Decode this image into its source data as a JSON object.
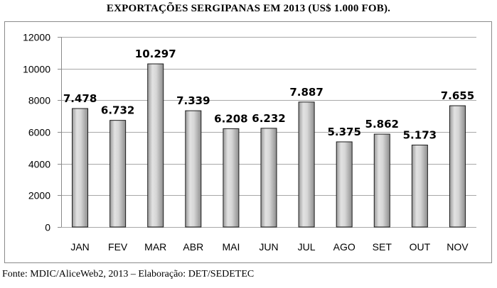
{
  "chart_data": {
    "type": "bar",
    "title": "EXPORTAÇÕES SERGIPANAS EM 2013 (US$ 1.000 FOB).",
    "categories": [
      "JAN",
      "FEV",
      "MAR",
      "ABR",
      "MAI",
      "JUN",
      "JUL",
      "AGO",
      "SET",
      "OUT",
      "NOV"
    ],
    "values": [
      7478,
      6732,
      10297,
      7339,
      6208,
      6232,
      7887,
      5375,
      5862,
      5173,
      7655
    ],
    "data_labels": [
      "7.478",
      "6.732",
      "10.297",
      "7.339",
      "6.208",
      "6.232",
      "7.887",
      "5.375",
      "5.862",
      "5.173",
      "7.655"
    ],
    "ylim": [
      0,
      12000
    ],
    "yticks": [
      0,
      2000,
      4000,
      6000,
      8000,
      10000,
      12000
    ],
    "ytick_labels": [
      "0",
      "2000",
      "4000",
      "6000",
      "8000",
      "10000",
      "12000"
    ],
    "xlabel": "",
    "ylabel": "",
    "grid": true,
    "bar_color": "#c8c8c8",
    "source": "Fonte: MDIC/AliceWeb2, 2013 – Elaboração: DET/SEDETEC"
  }
}
